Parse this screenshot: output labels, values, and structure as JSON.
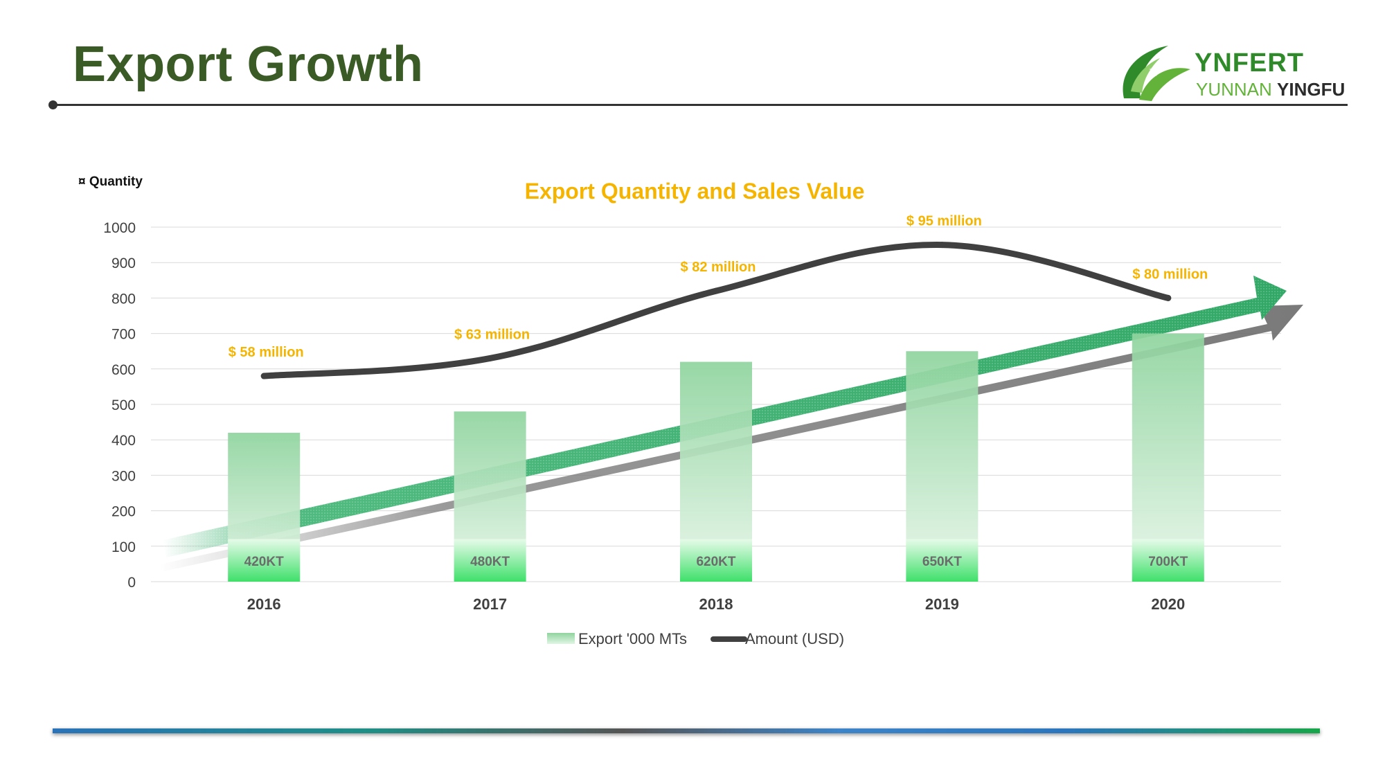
{
  "slide": {
    "title": "Export Growth"
  },
  "logo": {
    "name": "YNFERT",
    "sub_part1": "YUNNAN",
    "sub_part2": "YINGFU",
    "colors": {
      "dark_green": "#2f8a2a",
      "light_green": "#63b33a",
      "text": "#2b2b2b"
    }
  },
  "chart_data": {
    "type": "bar",
    "title": "Export Quantity and Sales Value",
    "y_axis_caption": "¤ Quantity",
    "categories": [
      "2016",
      "2017",
      "2018",
      "2019",
      "2020"
    ],
    "ylim": [
      0,
      1000
    ],
    "yticks": [
      0,
      100,
      200,
      300,
      400,
      500,
      600,
      700,
      800,
      900,
      1000
    ],
    "grid": true,
    "legend_position": "bottom-center",
    "series": [
      {
        "name": "Export '000 MTs",
        "kind": "bar",
        "values": [
          420,
          480,
          620,
          650,
          700
        ],
        "labels": [
          "420KT",
          "480KT",
          "620KT",
          "650KT",
          "700KT"
        ],
        "color": "#8fd49e"
      },
      {
        "name": "Amount (USD)",
        "kind": "line",
        "values": [
          580,
          630,
          820,
          950,
          800
        ],
        "labels": [
          "$ 58 million",
          "$ 63 million",
          "$ 82 million",
          "$ 95 million",
          "$ 80 million"
        ],
        "color": "#404040"
      }
    ],
    "colors": {
      "title": "#f5b400",
      "label": "#f5b400",
      "arrow": "#3cb371",
      "grid": "#d9d9d9"
    }
  }
}
